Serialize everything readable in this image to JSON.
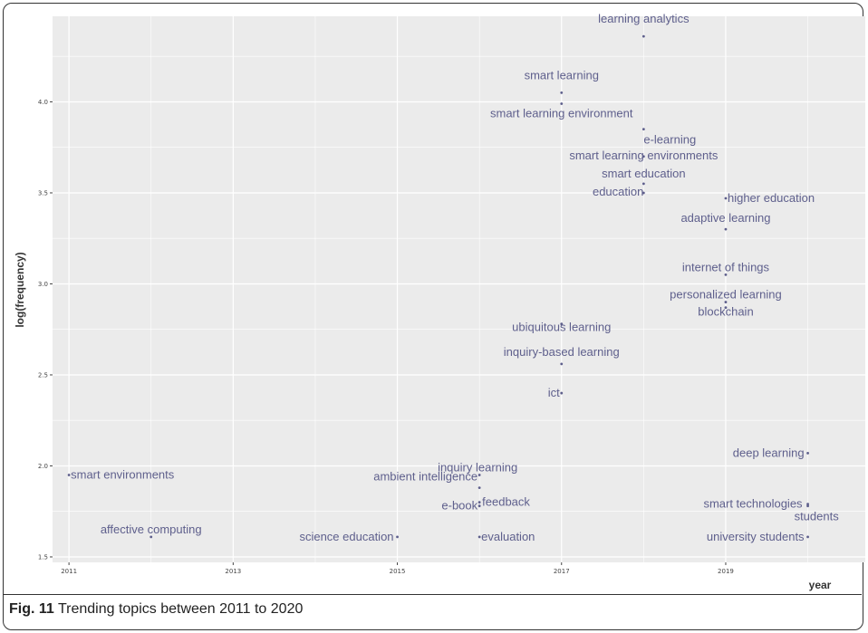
{
  "caption": {
    "label": "Fig. 11",
    "text": "Trending topics between 2011 to 2020"
  },
  "chart_data": {
    "type": "scatter",
    "title": "",
    "xlabel": "year",
    "ylabel": "log(frequency)",
    "xlim": [
      2010.8,
      2020.7
    ],
    "ylim": [
      1.47,
      4.47
    ],
    "x_ticks": [
      2011,
      2013,
      2015,
      2017,
      2019
    ],
    "y_ticks": [
      1.5,
      2.0,
      2.5,
      3.0,
      3.5,
      4.0
    ],
    "y_tick_labels": [
      "1.5",
      "2.0",
      "2.5",
      "3.0",
      "3.5",
      "4.0"
    ],
    "grid": true,
    "colors": {
      "panel": "#ebebeb",
      "grid": "#ffffff",
      "point": "#5e5f8c",
      "label": "#5e5f8c"
    },
    "points": [
      {
        "label": "learning analytics",
        "x": 2018,
        "y": 4.36
      },
      {
        "label": "smart learning",
        "x": 2017,
        "y": 4.05
      },
      {
        "label": "smart learning environment",
        "x": 2017,
        "y": 3.99
      },
      {
        "label": "e-learning",
        "x": 2018,
        "y": 3.85
      },
      {
        "label": "smart learning environments",
        "x": 2018,
        "y": 3.7
      },
      {
        "label": "smart education",
        "x": 2018,
        "y": 3.55
      },
      {
        "label": "education",
        "x": 2018,
        "y": 3.5
      },
      {
        "label": "higher education",
        "x": 2019,
        "y": 3.47
      },
      {
        "label": "adaptive learning",
        "x": 2019,
        "y": 3.3
      },
      {
        "label": "internet of things",
        "x": 2019,
        "y": 3.05
      },
      {
        "label": "personalized learning",
        "x": 2019,
        "y": 2.9
      },
      {
        "label": "blockchain",
        "x": 2019,
        "y": 2.87
      },
      {
        "label": "ubiquitous learning",
        "x": 2017,
        "y": 2.78
      },
      {
        "label": "inquiry-based learning",
        "x": 2017,
        "y": 2.56
      },
      {
        "label": "ict",
        "x": 2017,
        "y": 2.4
      },
      {
        "label": "smart environments",
        "x": 2011,
        "y": 1.95
      },
      {
        "label": "inquiry learning",
        "x": 2016,
        "y": 1.95
      },
      {
        "label": "ambient intelligence",
        "x": 2016,
        "y": 1.88
      },
      {
        "label": "feedback",
        "x": 2016,
        "y": 1.8
      },
      {
        "label": "e-book",
        "x": 2016,
        "y": 1.78
      },
      {
        "label": "affective computing",
        "x": 2012,
        "y": 1.61
      },
      {
        "label": "science education",
        "x": 2015,
        "y": 1.61
      },
      {
        "label": "evaluation",
        "x": 2016,
        "y": 1.61
      },
      {
        "label": "deep learning",
        "x": 2020,
        "y": 2.07
      },
      {
        "label": "smart technologies",
        "x": 2020,
        "y": 1.79
      },
      {
        "label": "students",
        "x": 2020,
        "y": 1.78
      },
      {
        "label": "university students",
        "x": 2020,
        "y": 1.61
      }
    ]
  }
}
